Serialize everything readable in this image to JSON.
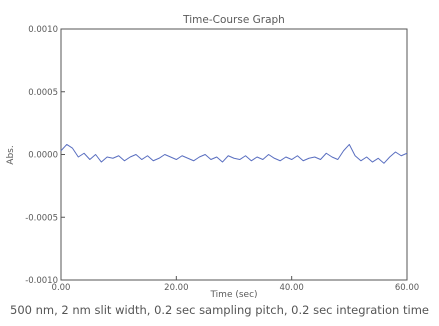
{
  "chart_data": {
    "type": "line",
    "title": "Time-Course Graph",
    "xlabel": "Time (sec)",
    "ylabel": "Abs.",
    "xlim": [
      0,
      60
    ],
    "ylim": [
      -0.001,
      0.001
    ],
    "x_ticks": [
      "0.00",
      "20.00",
      "40.00",
      "60.00"
    ],
    "y_ticks": [
      "0.0010",
      "0.0005",
      "0.0000",
      "-0.0005",
      "-0.0010"
    ],
    "grid": false,
    "line_color": "#5a6fc0",
    "series": [
      {
        "x": [
          0,
          1,
          2,
          3,
          4,
          5,
          6,
          7,
          8,
          9,
          10,
          11,
          12,
          13,
          14,
          15,
          16,
          17,
          18,
          19,
          20,
          21,
          22,
          23,
          24,
          25,
          26,
          27,
          28,
          29,
          30,
          31,
          32,
          33,
          34,
          35,
          36,
          37,
          38,
          39,
          40,
          41,
          42,
          43,
          44,
          45,
          46,
          47,
          48,
          49,
          50,
          51,
          52,
          53,
          54,
          55,
          56,
          57,
          58,
          59,
          60
        ],
        "values": [
          3e-05,
          8e-05,
          5e-05,
          -2e-05,
          1e-05,
          -4e-05,
          0.0,
          -6e-05,
          -2e-05,
          -3e-05,
          -1e-05,
          -5e-05,
          -2e-05,
          0.0,
          -4e-05,
          -1e-05,
          -5e-05,
          -3e-05,
          0.0,
          -2e-05,
          -4e-05,
          -1e-05,
          -3e-05,
          -5e-05,
          -2e-05,
          0.0,
          -4e-05,
          -2e-05,
          -6e-05,
          -1e-05,
          -3e-05,
          -4e-05,
          -1e-05,
          -5e-05,
          -2e-05,
          -4e-05,
          0.0,
          -3e-05,
          -5e-05,
          -2e-05,
          -4e-05,
          -1e-05,
          -5e-05,
          -3e-05,
          -2e-05,
          -4e-05,
          1e-05,
          -2e-05,
          -4e-05,
          3e-05,
          8e-05,
          -1e-05,
          -5e-05,
          -2e-05,
          -6e-05,
          -3e-05,
          -7e-05,
          -2e-05,
          2e-05,
          -1e-05,
          1e-05
        ]
      }
    ]
  },
  "caption": "500 nm, 2 nm slit width, 0.2 sec sampling pitch, 0.2 sec integration time"
}
